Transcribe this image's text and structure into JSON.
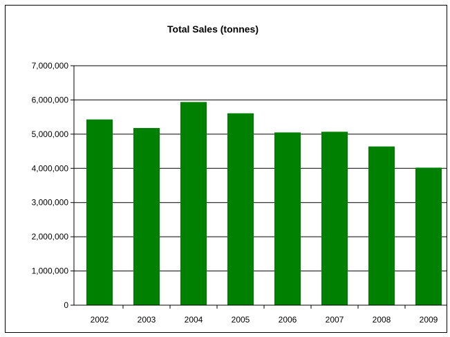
{
  "chart_data": {
    "type": "bar",
    "title": "Total Sales (tonnes)",
    "xlabel": "",
    "ylabel": "",
    "categories": [
      "2002",
      "2003",
      "2004",
      "2005",
      "2006",
      "2007",
      "2008",
      "2009"
    ],
    "values": [
      5430000,
      5180000,
      5940000,
      5610000,
      5050000,
      5070000,
      4640000,
      4020000
    ],
    "ylim": [
      0,
      7000000
    ],
    "yticks": [
      "0",
      "1,000,000",
      "2,000,000",
      "3,000,000",
      "4,000,000",
      "5,000,000",
      "6,000,000",
      "7,000,000"
    ],
    "grid": true,
    "bar_color": "#008000"
  }
}
